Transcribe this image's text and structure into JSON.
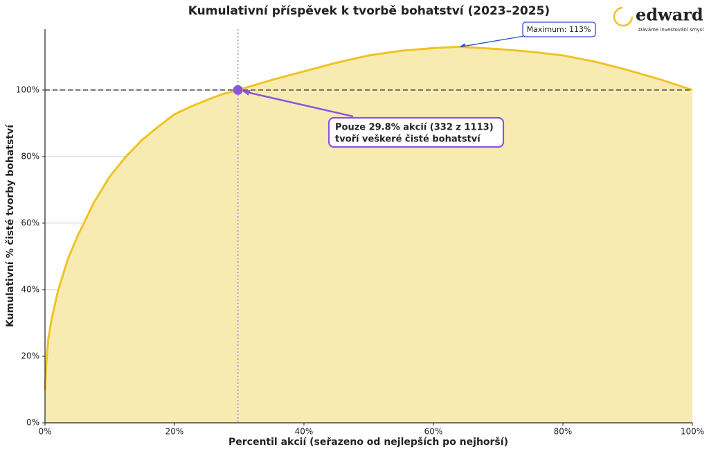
{
  "chart_data": {
    "type": "area",
    "title": "Kumulativní příspěvek k tvorbě bohatství (2023–2025)",
    "x_label": "Percentil akcií (seřazeno od nejlepších po nejhorší)",
    "y_label": "Kumulativní % čisté tvorby bohatství",
    "series": [
      {
        "name": "Kumulativní příspěvek",
        "color": "#eec424",
        "fill": "#f8ebb2",
        "x": [
          0,
          0.2,
          0.5,
          1,
          2,
          3.5,
          5,
          7.5,
          10,
          12.5,
          15,
          17.5,
          20,
          22.5,
          25,
          27.5,
          29.8,
          35,
          40,
          45,
          50,
          55,
          60,
          64,
          70,
          75,
          80,
          85,
          90,
          95,
          100
        ],
        "values": [
          10,
          18,
          25,
          31,
          39.6,
          49,
          56,
          66,
          74,
          80,
          85,
          89,
          92.7,
          95,
          97,
          98.8,
          100,
          103,
          105.6,
          108.2,
          110.4,
          111.8,
          112.6,
          113,
          112.3,
          111.5,
          110.4,
          108.5,
          106,
          103.2,
          100
        ]
      }
    ],
    "xlim": [
      0,
      100
    ],
    "ylim": [
      0,
      118.3
    ],
    "xticks": [
      {
        "value": 0,
        "label": "0%"
      },
      {
        "value": 20,
        "label": "20%"
      },
      {
        "value": 40,
        "label": "40%"
      },
      {
        "value": 60,
        "label": "60%"
      },
      {
        "value": 80,
        "label": "80%"
      },
      {
        "value": 100,
        "label": "100%"
      }
    ],
    "yticks": [
      {
        "value": 0,
        "label": "0%"
      },
      {
        "value": 20,
        "label": "20%"
      },
      {
        "value": 40,
        "label": "40%"
      },
      {
        "value": 60,
        "label": "60%"
      },
      {
        "value": 80,
        "label": "80%"
      },
      {
        "value": 100,
        "label": "100%"
      }
    ],
    "grid": true,
    "reference_lines": {
      "y": 100,
      "x": 29.8
    },
    "highlight": {
      "x": 29.8,
      "y": 100,
      "color": "#8a55dd",
      "text": [
        "Pouze 29.8% akcií (332 z 1113)",
        "tvoří veškeré čisté bohatství"
      ]
    },
    "maximum": {
      "x": 64,
      "y": 113,
      "text": "Maximum: 113%"
    }
  },
  "logo": {
    "name": "edward",
    "tagline": "Dáváme investování smysl"
  }
}
